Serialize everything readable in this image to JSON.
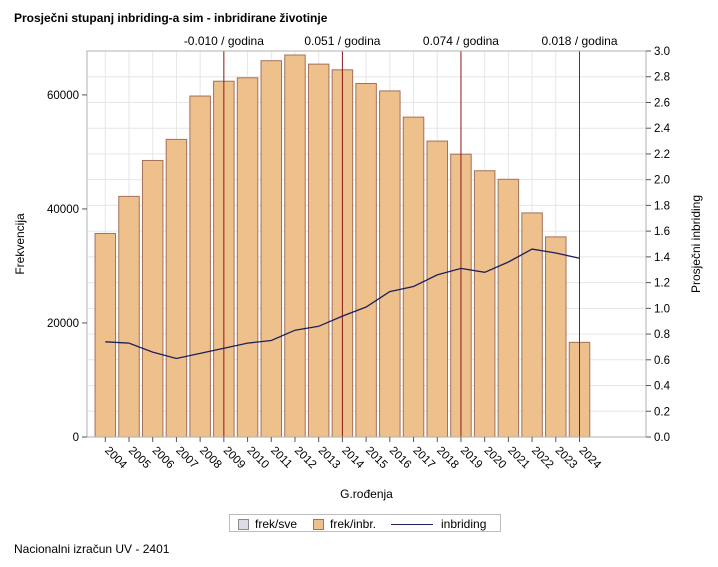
{
  "title": "Prosječni stupanj inbriding-a sim - inbridirane životinje",
  "footer": "Nacionalni izračun UV - 2401",
  "colors": {
    "bar_fill": "#eec08b",
    "bar_stroke": "#a3715a",
    "line": "#1f1f5e",
    "vline": "#8b1a1a",
    "grid": "#e6e6e6",
    "frame": "#b0b0b0",
    "swatch_frek_sve": "#dcdce8"
  },
  "chart_data": {
    "type": "bar",
    "categories": [
      "2004",
      "2005",
      "2006",
      "2007",
      "2008",
      "2009",
      "2010",
      "2011",
      "2012",
      "2013",
      "2014",
      "2015",
      "2016",
      "2017",
      "2018",
      "2019",
      "2020",
      "2021",
      "2022",
      "2023",
      "2024"
    ],
    "series": [
      {
        "name": "frek/inbr.",
        "type": "bar",
        "axis": "left",
        "values": [
          35700,
          42200,
          48500,
          52200,
          59800,
          62400,
          63000,
          66000,
          67000,
          65400,
          64400,
          62000,
          60700,
          56100,
          51900,
          49600,
          46700,
          45200,
          39300,
          35100,
          16600
        ]
      },
      {
        "name": "inbriding",
        "type": "line",
        "axis": "right",
        "values": [
          0.74,
          0.73,
          0.66,
          0.61,
          0.65,
          0.69,
          0.73,
          0.75,
          0.83,
          0.86,
          0.94,
          1.01,
          1.13,
          1.17,
          1.26,
          1.31,
          1.28,
          1.36,
          1.46,
          1.43,
          1.39
        ]
      }
    ],
    "legend_only_series": [
      {
        "name": "frek/sve"
      }
    ],
    "xlabel": "G.rođenja",
    "ylabel_left": "Frekvencija",
    "ylabel_right": "Prosječni inbriding",
    "ylim_left": [
      0,
      67700
    ],
    "yticks_left": [
      0,
      20000,
      40000,
      60000
    ],
    "ylim_right": [
      0,
      3.0
    ],
    "yticks_right": [
      0.0,
      0.2,
      0.4,
      0.6,
      0.8,
      1.0,
      1.2,
      1.4,
      1.6,
      1.8,
      2.0,
      2.2,
      2.4,
      2.6,
      2.8,
      3.0
    ],
    "yticks_right_labels": [
      "0.0",
      "0.2",
      "0.4",
      "0.6",
      "0.8",
      "1.0",
      "1.2",
      "1.4",
      "1.6",
      "1.8",
      "2.0",
      "2.2",
      "2.4",
      "2.6",
      "2.8",
      "3.0"
    ],
    "trend_annotations": [
      {
        "x": "2009",
        "label": "-0.010 / godina"
      },
      {
        "x": "2014",
        "label": "0.051 / godina"
      },
      {
        "x": "2019",
        "label": "0.074 / godina"
      },
      {
        "x": "2024",
        "label": "0.018 / godina"
      }
    ],
    "grid": true,
    "legend_position": "bottom"
  }
}
